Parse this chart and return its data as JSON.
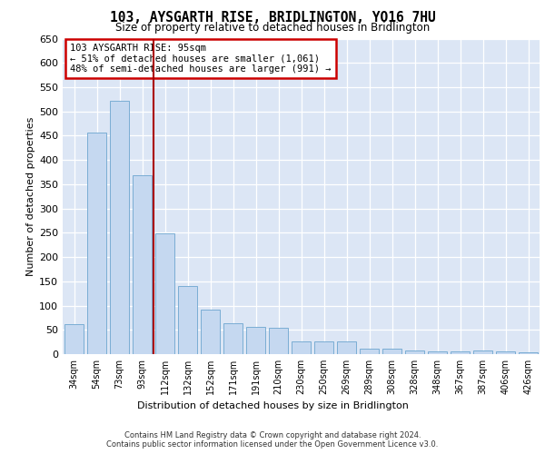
{
  "title": "103, AYSGARTH RISE, BRIDLINGTON, YO16 7HU",
  "subtitle": "Size of property relative to detached houses in Bridlington",
  "xlabel": "Distribution of detached houses by size in Bridlington",
  "ylabel": "Number of detached properties",
  "categories": [
    "34sqm",
    "54sqm",
    "73sqm",
    "93sqm",
    "112sqm",
    "132sqm",
    "152sqm",
    "171sqm",
    "191sqm",
    "210sqm",
    "230sqm",
    "250sqm",
    "269sqm",
    "289sqm",
    "308sqm",
    "328sqm",
    "348sqm",
    "367sqm",
    "387sqm",
    "406sqm",
    "426sqm"
  ],
  "values": [
    62,
    456,
    521,
    368,
    249,
    140,
    91,
    63,
    57,
    55,
    27,
    26,
    27,
    12,
    12,
    8,
    6,
    5,
    7,
    5,
    4
  ],
  "bar_color": "#c5d8f0",
  "bar_edgecolor": "#7aadd4",
  "annotation_box_text": "103 AYSGARTH RISE: 95sqm\n← 51% of detached houses are smaller (1,061)\n48% of semi-detached houses are larger (991) →",
  "annotation_box_color": "#ffffff",
  "annotation_box_edgecolor": "#cc0000",
  "ylim": [
    0,
    650
  ],
  "yticks": [
    0,
    50,
    100,
    150,
    200,
    250,
    300,
    350,
    400,
    450,
    500,
    550,
    600,
    650
  ],
  "background_color": "#dce6f5",
  "grid_color": "#ffffff",
  "footer_line1": "Contains HM Land Registry data © Crown copyright and database right 2024.",
  "footer_line2": "Contains public sector information licensed under the Open Government Licence v3.0.",
  "marker_index": 3,
  "vline_color": "#aa0000"
}
